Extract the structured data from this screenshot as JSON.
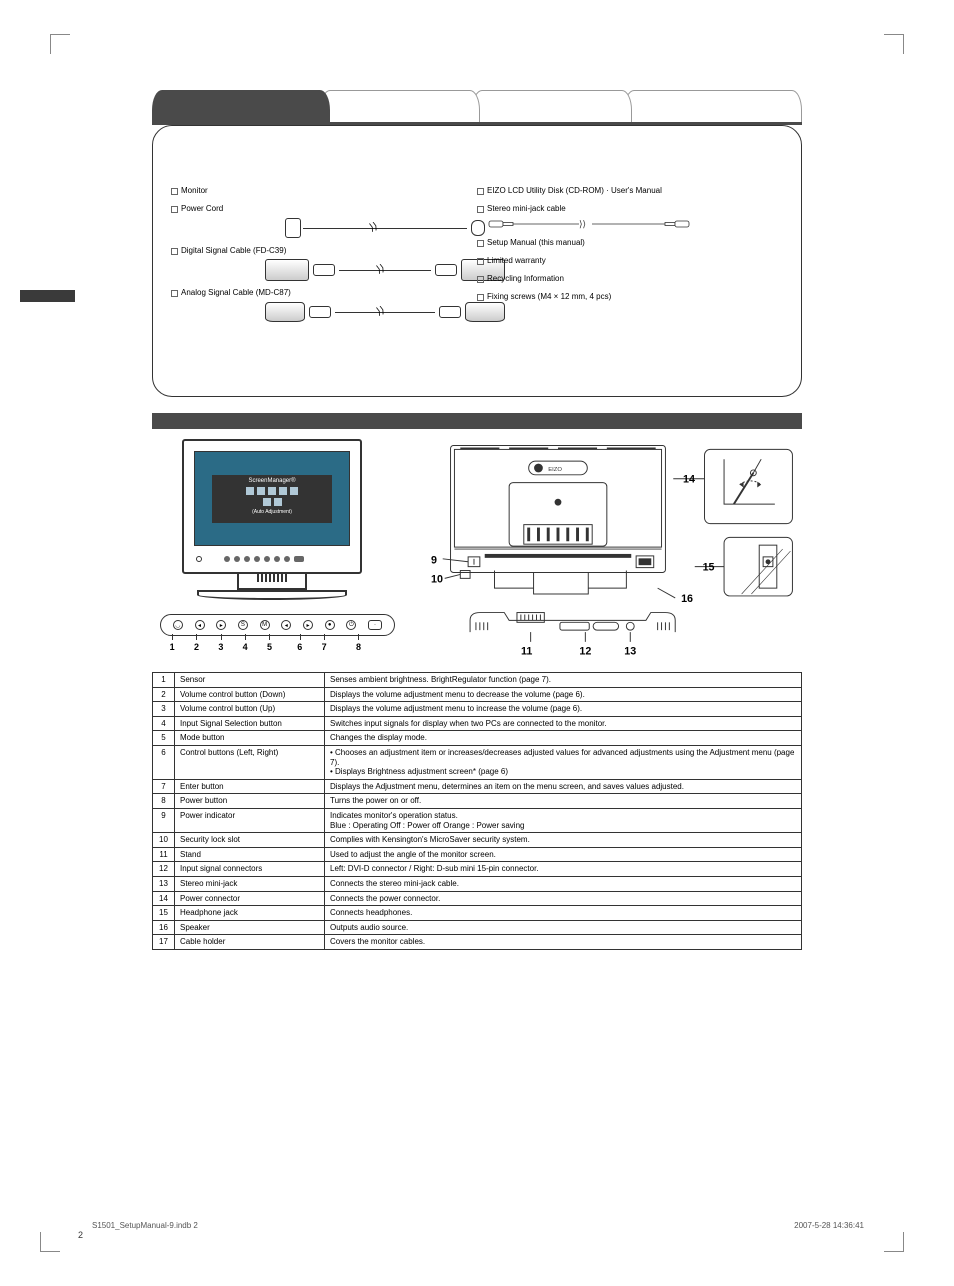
{
  "page": {
    "number": "2",
    "footer_left": "S1501_SetupManual-9.indb   2",
    "footer_right": "2007-5-28   14:36:41"
  },
  "package": {
    "items_left": [
      {
        "label": "Monitor",
        "img": null
      },
      {
        "label": "Power Cord",
        "img": "power"
      },
      {
        "label": "Digital Signal Cable (FD-C39)",
        "img": "dvi"
      },
      {
        "label": "Analog Signal Cable (MD-C87)",
        "img": "vga"
      }
    ],
    "items_right": [
      {
        "label": "EIZO LCD Utility Disk (CD-ROM) · User's Manual",
        "img": null
      },
      {
        "label": "Stereo mini-jack cable",
        "img": "stereo"
      },
      {
        "label": "Setup Manual (this manual)",
        "img": null
      },
      {
        "label": "Limited warranty",
        "img": null
      },
      {
        "label": "Recycling Information",
        "img": null
      },
      {
        "label": "Fixing screws (M4 × 12 mm, 4 pcs)",
        "img": null
      }
    ]
  },
  "osd": {
    "title": "ScreenManager®",
    "caption": "(Auto Adjustment)"
  },
  "callouts": {
    "c9": "9",
    "c10": "10",
    "c11": "11",
    "c12": "12",
    "c13": "13",
    "c14": "14",
    "c15": "15",
    "c16": "16"
  },
  "button_numbers": [
    "1",
    "2",
    "3",
    "4",
    "5",
    "6",
    "7",
    "8"
  ],
  "table_rows": [
    {
      "n": "1",
      "name": "Sensor",
      "desc": "Senses ambient brightness. BrightRegulator function (page 7)."
    },
    {
      "n": "2",
      "name": "Volume control button (Down)",
      "desc": "Displays the volume adjustment menu to decrease the volume (page 6)."
    },
    {
      "n": "3",
      "name": "Volume control button (Up)",
      "desc": "Displays the volume adjustment menu to increase the volume (page 6)."
    },
    {
      "n": "4",
      "name": "Input Signal Selection button",
      "desc": "Switches input signals for display when two PCs are connected to the monitor."
    },
    {
      "n": "5",
      "name": "Mode button",
      "desc": "Changes the display mode."
    },
    {
      "n": "6",
      "name": "Control buttons (Left, Right)",
      "desc": "• Chooses an adjustment item or increases/decreases adjusted values for advanced adjustments using the Adjustment menu (page 7).\n• Displays Brightness adjustment screen* (page 6)"
    },
    {
      "n": "7",
      "name": "Enter button",
      "desc": "Displays the Adjustment menu, determines an item on the menu screen, and saves values adjusted."
    },
    {
      "n": "8",
      "name": "Power button",
      "desc": "Turns the power on or off."
    },
    {
      "n": "9",
      "name": "Power indicator",
      "desc": "Indicates monitor's operation status.\nBlue : Operating   Off : Power off   Orange : Power saving"
    },
    {
      "n": "10",
      "name": "Security lock slot",
      "desc": "Complies with Kensington's MicroSaver security system."
    },
    {
      "n": "11",
      "name": "Stand",
      "desc": "Used to adjust the angle of the monitor screen."
    },
    {
      "n": "12",
      "name": "Input signal connectors",
      "desc": "Left: DVI-D connector / Right: D-sub mini 15-pin connector."
    },
    {
      "n": "13",
      "name": "Stereo mini-jack",
      "desc": "Connects the stereo mini-jack cable."
    },
    {
      "n": "14",
      "name": "Power connector",
      "desc": "Connects the power connector."
    },
    {
      "n": "15",
      "name": "Headphone jack",
      "desc": "Connects headphones."
    },
    {
      "n": "16",
      "name": "Speaker",
      "desc": "Outputs audio source."
    },
    {
      "n": "17",
      "name": "Cable holder",
      "desc": "Covers the monitor cables."
    }
  ],
  "colors": {
    "bar": "#4a4a4a",
    "screen": "#2b6b86",
    "line": "#333333"
  }
}
